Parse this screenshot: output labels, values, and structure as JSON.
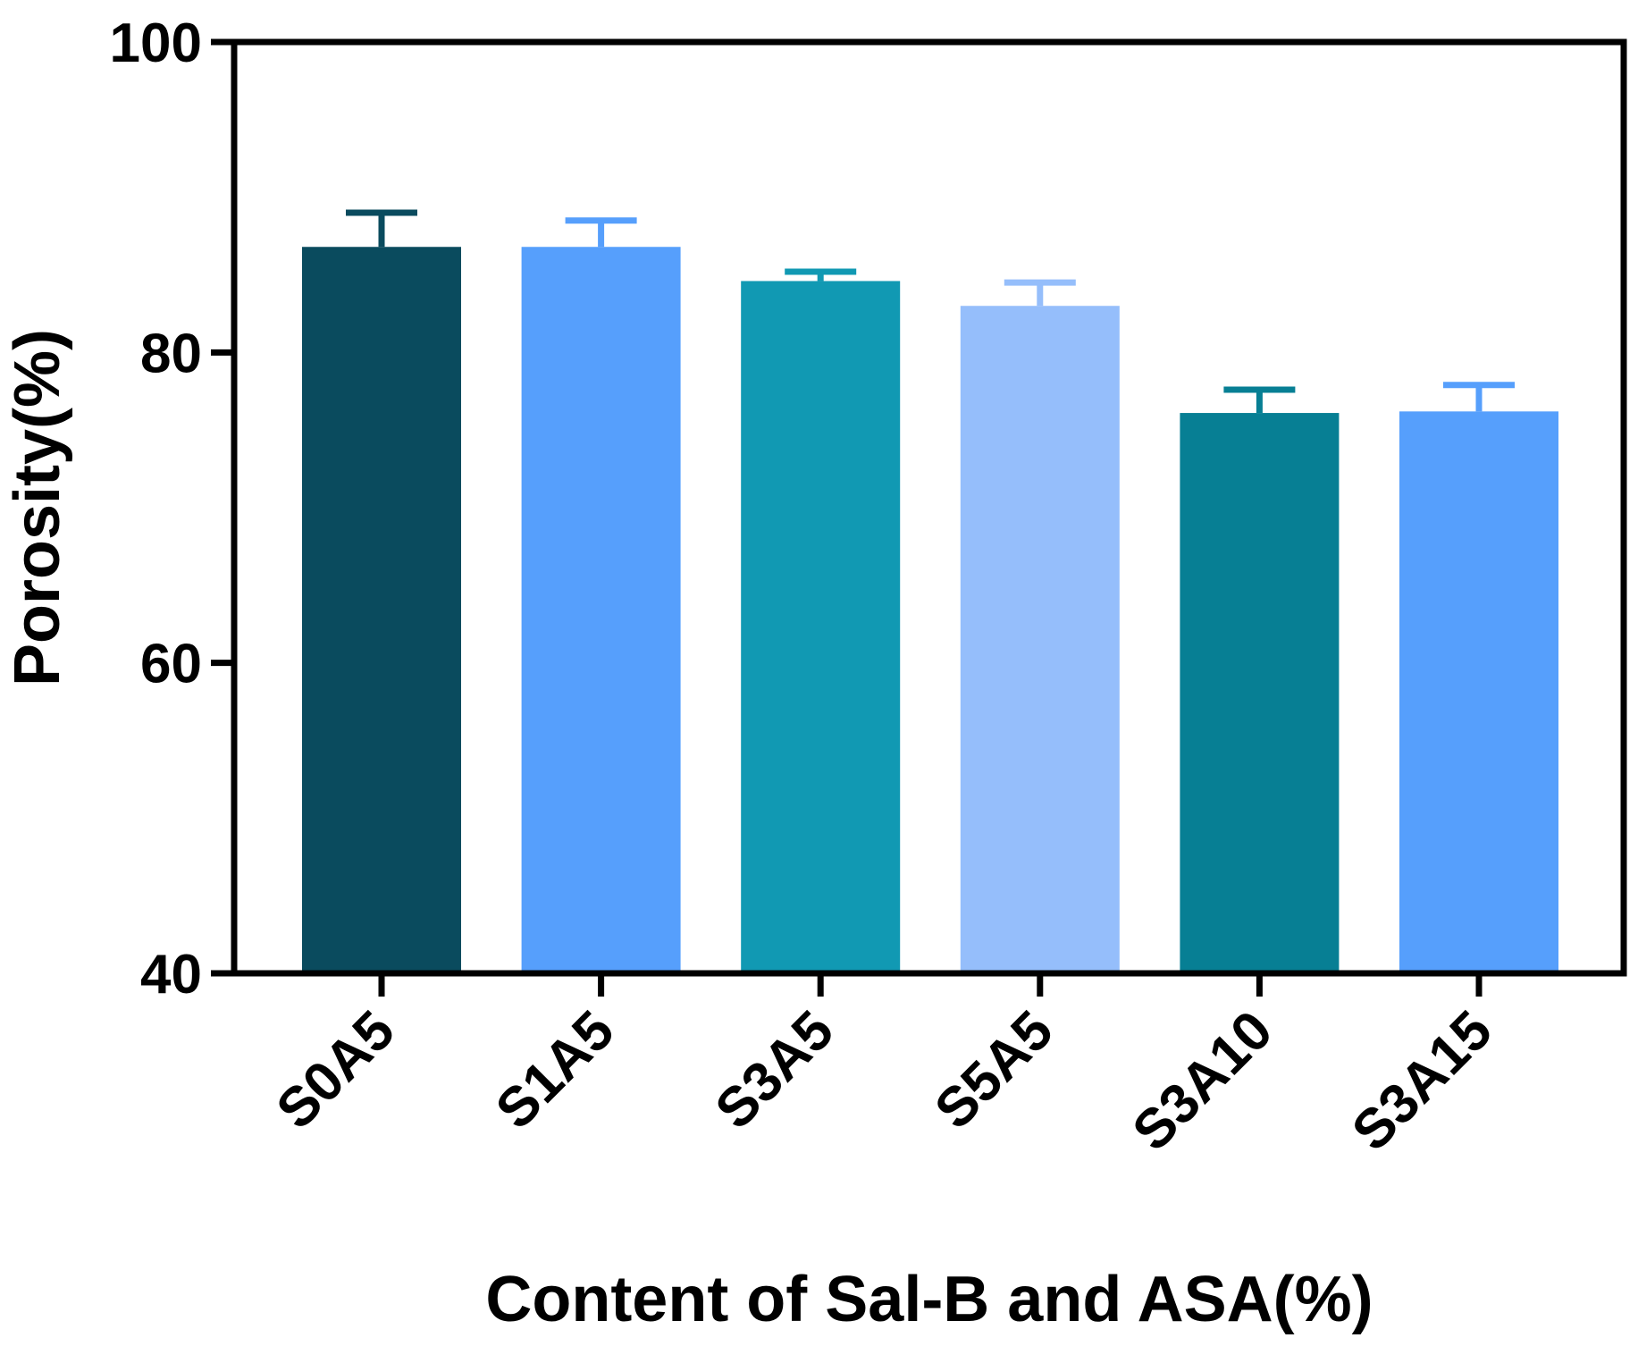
{
  "chart_data": {
    "type": "bar",
    "title": "",
    "xlabel": "Content of Sal-B and ASA(%)",
    "ylabel": "Porosity(%)",
    "ylim": [
      40,
      100
    ],
    "yticks": [
      40,
      60,
      80,
      100
    ],
    "ytick_labels": [
      "40",
      "60",
      "80",
      "100"
    ],
    "categories": [
      "S0A5",
      "S1A5",
      "S3A5",
      "S5A5",
      "S3A10",
      "S3A15"
    ],
    "values": [
      86.8,
      86.8,
      84.6,
      83.0,
      76.1,
      76.2
    ],
    "errors": [
      2.2,
      1.7,
      0.6,
      1.5,
      1.5,
      1.7
    ],
    "colors": [
      "#0a4b5e",
      "#569ffc",
      "#1199b3",
      "#95befb",
      "#077f94",
      "#569ffc"
    ],
    "grid": false,
    "legend": "none"
  }
}
